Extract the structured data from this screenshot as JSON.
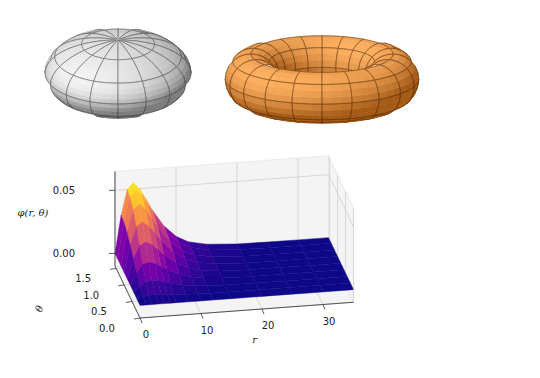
{
  "chart_data": {
    "type": "surface",
    "color": "plasma",
    "grid": true,
    "xlabel": "r",
    "ylabel": "θ",
    "zlabel": "φ(r, θ)",
    "x": [
      0,
      1,
      2,
      3,
      4,
      5,
      6,
      8,
      10,
      12,
      15,
      20,
      25,
      30,
      35
    ],
    "y": [
      0,
      0.2,
      0.4,
      0.6,
      0.8,
      1.0,
      1.2,
      1.4,
      1.571
    ],
    "values": [
      [
        0,
        0,
        0,
        0,
        0,
        0,
        0,
        0,
        0,
        0,
        0,
        0,
        0,
        0,
        0
      ],
      [
        0,
        0.0012,
        0.002,
        0.0022,
        0.002,
        0.0017,
        0.0013,
        0.0008,
        0.0004,
        0.0002,
        0.0001,
        0,
        0,
        0,
        0
      ],
      [
        0,
        0.0046,
        0.0076,
        0.0084,
        0.0076,
        0.0064,
        0.005,
        0.0029,
        0.0015,
        0.0008,
        0.0003,
        0.0001,
        0,
        0,
        0
      ],
      [
        0,
        0.0096,
        0.016,
        0.0175,
        0.016,
        0.0134,
        0.0105,
        0.0061,
        0.0032,
        0.0016,
        0.0006,
        0.0001,
        0,
        0,
        0
      ],
      [
        0,
        0.0155,
        0.0258,
        0.0283,
        0.0258,
        0.0216,
        0.017,
        0.0098,
        0.0052,
        0.0026,
        0.001,
        0.0002,
        0.0001,
        0,
        0
      ],
      [
        0,
        0.0212,
        0.0354,
        0.0389,
        0.0354,
        0.0297,
        0.0234,
        0.0135,
        0.0071,
        0.0035,
        0.0014,
        0.0003,
        0.0001,
        0,
        0
      ],
      [
        0,
        0.0261,
        0.0435,
        0.0478,
        0.0435,
        0.0365,
        0.0287,
        0.0165,
        0.0087,
        0.0043,
        0.0017,
        0.0003,
        0.0001,
        0,
        0
      ],
      [
        0,
        0.0291,
        0.0486,
        0.0534,
        0.0486,
        0.0408,
        0.032,
        0.0184,
        0.0097,
        0.0049,
        0.0019,
        0.0004,
        0.0001,
        0,
        0
      ],
      [
        0,
        0.03,
        0.05,
        0.055,
        0.05,
        0.042,
        0.033,
        0.019,
        0.01,
        0.005,
        0.002,
        0.0004,
        0.0001,
        0,
        0
      ]
    ],
    "xlim": [
      0,
      35
    ],
    "ylim": [
      0,
      1.571
    ],
    "zlim": [
      -0.01,
      0.065
    ],
    "xticks": [
      0,
      10,
      20,
      30
    ],
    "yticks": [
      {
        "value": 0,
        "label": "0.0"
      },
      {
        "value": 0.5,
        "label": "0.5"
      },
      {
        "value": 1.0,
        "label": "1.0"
      },
      {
        "value": 1.5,
        "label": "1.5"
      }
    ],
    "zticks": [
      {
        "value": 0,
        "label": "0.00"
      },
      {
        "value": 0.05,
        "label": "0.05"
      }
    ]
  }
}
